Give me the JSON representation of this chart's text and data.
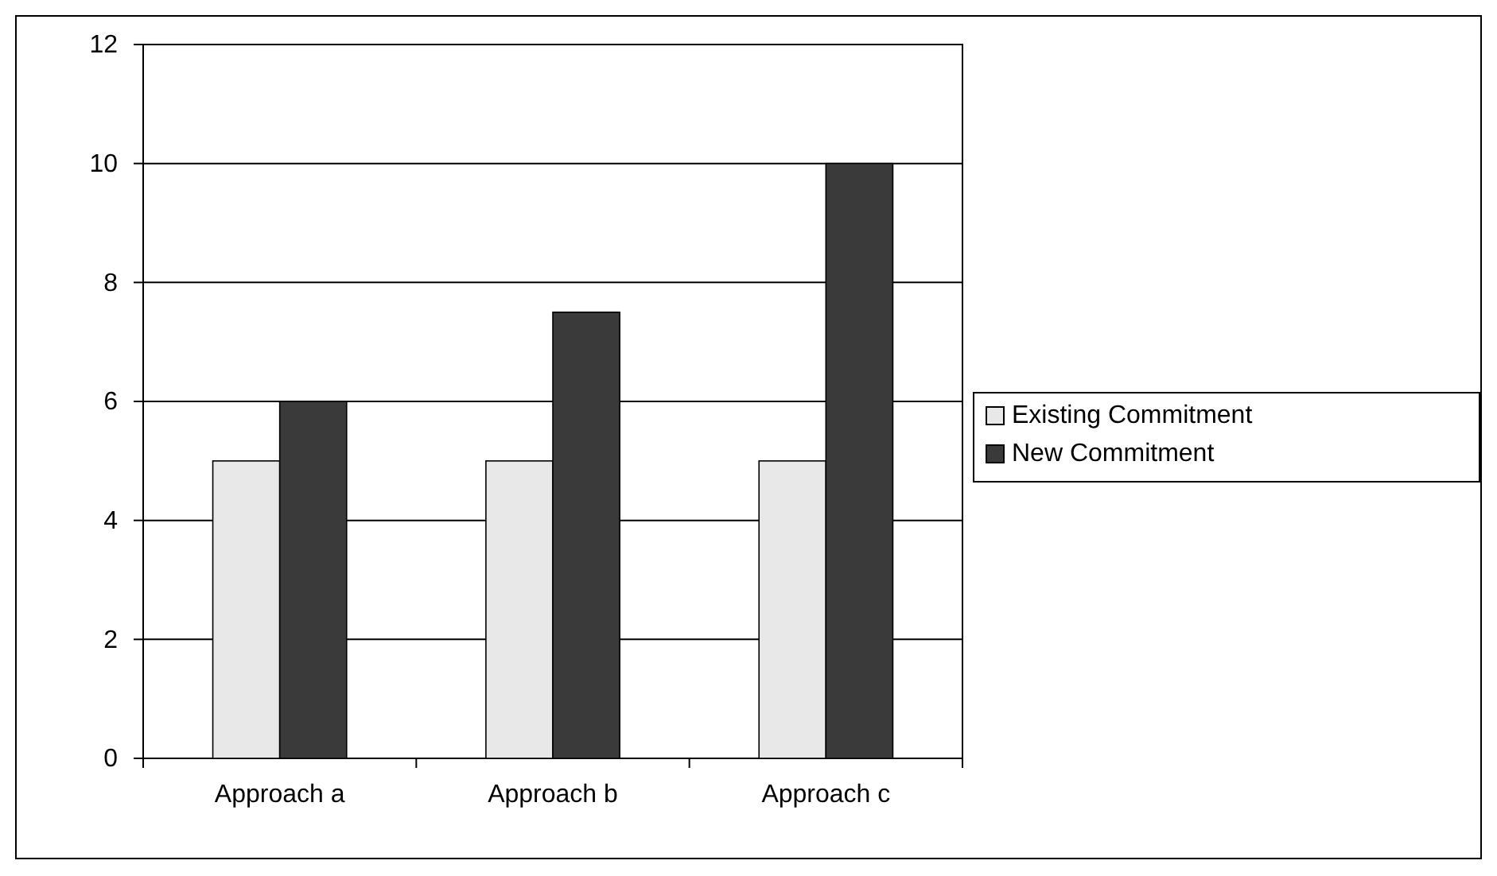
{
  "chart_data": {
    "type": "bar",
    "categories": [
      "Approach a",
      "Approach b",
      "Approach c"
    ],
    "series": [
      {
        "name": "Existing Commitment",
        "color": "#e8e8e8",
        "values": [
          5,
          5,
          5
        ]
      },
      {
        "name": "New Commitment",
        "color": "#3a3a3a",
        "values": [
          6,
          7.5,
          10
        ]
      }
    ],
    "ylim": [
      0,
      12
    ],
    "yticks": [
      0,
      2,
      4,
      6,
      8,
      10,
      12
    ],
    "grid": "y",
    "legend": "right"
  }
}
